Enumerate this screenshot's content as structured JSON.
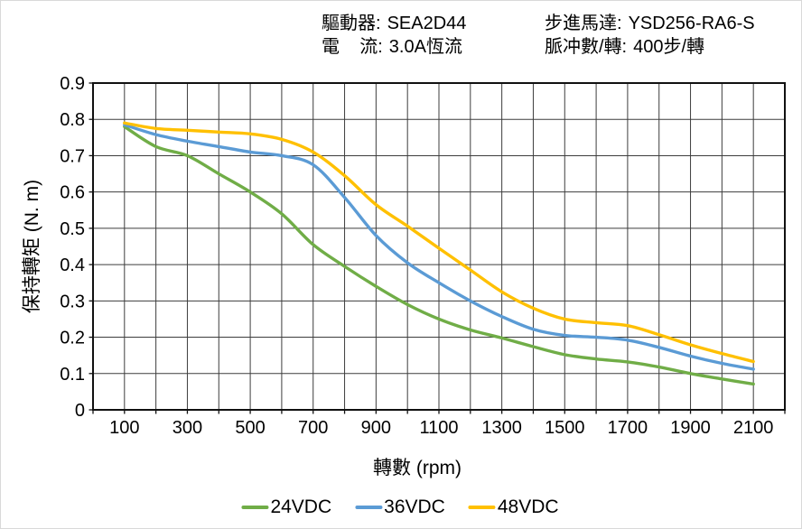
{
  "header": {
    "driver_label": "驅動器:",
    "driver_value": "SEA2D44",
    "current_label": "電    流:",
    "current_value": "3.0A恆流",
    "motor_label": "步進馬達:",
    "motor_value": "YSD256-RA6-S",
    "pulse_label": "脈冲數/轉:",
    "pulse_value": "400步/轉"
  },
  "colors": {
    "grid": "#3d3d3d",
    "border": "#111111",
    "text": "#000000",
    "panel_edge": "#d9d9d9"
  },
  "chart_data": {
    "type": "line",
    "title": "",
    "xlabel": "轉數 (rpm)",
    "ylabel": "保持轉矩 (N. m)",
    "xlim": [
      0,
      2200
    ],
    "ylim": [
      0,
      0.9
    ],
    "x_grid_step": 100,
    "y_tick_step": 0.1,
    "grid": true,
    "legend_position": "bottom",
    "x_tick_labels": [
      100,
      300,
      500,
      700,
      900,
      1100,
      1300,
      1500,
      1700,
      1900,
      2100
    ],
    "x": [
      100,
      200,
      300,
      400,
      500,
      600,
      700,
      800,
      900,
      1000,
      1100,
      1200,
      1300,
      1400,
      1500,
      1600,
      1700,
      1800,
      1900,
      2000,
      2100
    ],
    "series": [
      {
        "name": "24VDC",
        "color": "#70AD47",
        "values": [
          0.78,
          0.725,
          0.7,
          0.65,
          0.6,
          0.54,
          0.455,
          0.395,
          0.34,
          0.29,
          0.25,
          0.22,
          0.198,
          0.174,
          0.152,
          0.14,
          0.132,
          0.118,
          0.1,
          0.085,
          0.071
        ]
      },
      {
        "name": "36VDC",
        "color": "#5B9BD5",
        "values": [
          0.785,
          0.758,
          0.74,
          0.725,
          0.71,
          0.7,
          0.675,
          0.585,
          0.48,
          0.405,
          0.35,
          0.3,
          0.257,
          0.222,
          0.205,
          0.2,
          0.192,
          0.172,
          0.148,
          0.128,
          0.112
        ]
      },
      {
        "name": "48VDC",
        "color": "#FFC000",
        "values": [
          0.79,
          0.775,
          0.77,
          0.765,
          0.76,
          0.745,
          0.71,
          0.645,
          0.565,
          0.506,
          0.445,
          0.385,
          0.325,
          0.28,
          0.25,
          0.24,
          0.232,
          0.207,
          0.179,
          0.155,
          0.133
        ]
      }
    ]
  }
}
